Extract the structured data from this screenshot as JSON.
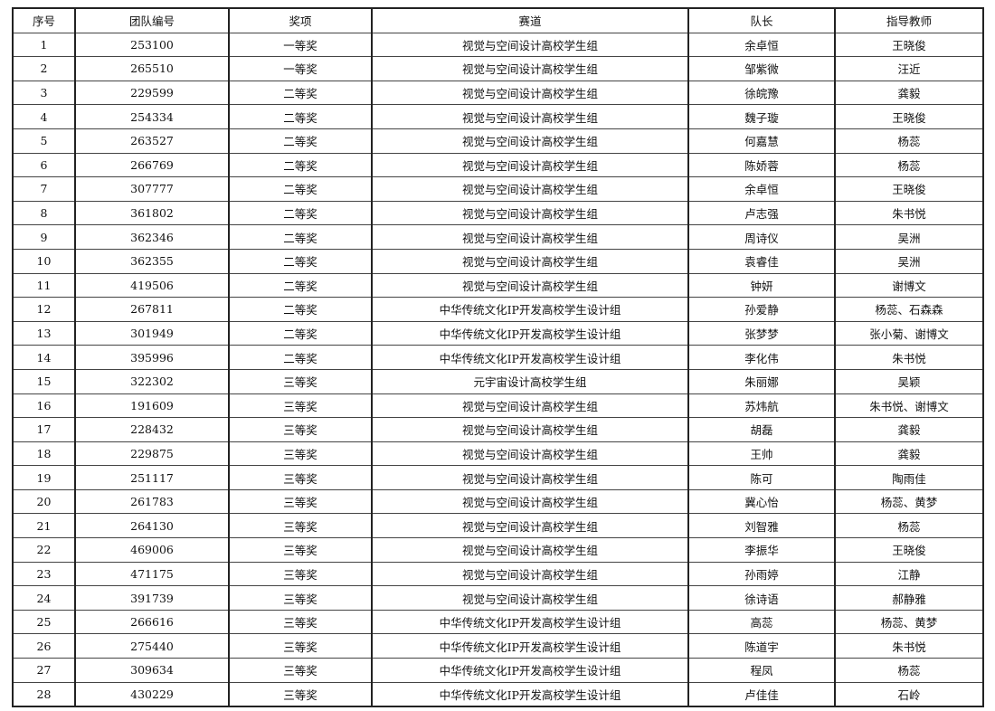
{
  "table": {
    "headers": [
      "序号",
      "团队编号",
      "奖项",
      "赛道",
      "队长",
      "指导教师"
    ],
    "rows": [
      [
        "1",
        "253100",
        "一等奖",
        "视觉与空间设计高校学生组",
        "余卓恒",
        "王晓俊"
      ],
      [
        "2",
        "265510",
        "一等奖",
        "视觉与空间设计高校学生组",
        "邹紫微",
        "汪近"
      ],
      [
        "3",
        "229599",
        "二等奖",
        "视觉与空间设计高校学生组",
        "徐皖豫",
        "龚毅"
      ],
      [
        "4",
        "254334",
        "二等奖",
        "视觉与空间设计高校学生组",
        "魏子璇",
        "王晓俊"
      ],
      [
        "5",
        "263527",
        "二等奖",
        "视觉与空间设计高校学生组",
        "何嘉慧",
        "杨蕊"
      ],
      [
        "6",
        "266769",
        "二等奖",
        "视觉与空间设计高校学生组",
        "陈娇蓉",
        "杨蕊"
      ],
      [
        "7",
        "307777",
        "二等奖",
        "视觉与空间设计高校学生组",
        "余卓恒",
        "王晓俊"
      ],
      [
        "8",
        "361802",
        "二等奖",
        "视觉与空间设计高校学生组",
        "卢志强",
        "朱书悦"
      ],
      [
        "9",
        "362346",
        "二等奖",
        "视觉与空间设计高校学生组",
        "周诗仪",
        "吴洲"
      ],
      [
        "10",
        "362355",
        "二等奖",
        "视觉与空间设计高校学生组",
        "袁睿佳",
        "吴洲"
      ],
      [
        "11",
        "419506",
        "二等奖",
        "视觉与空间设计高校学生组",
        "钟妍",
        "谢博文"
      ],
      [
        "12",
        "267811",
        "二等奖",
        "中华传统文化IP开发高校学生设计组",
        "孙爱静",
        "杨蕊、石森森"
      ],
      [
        "13",
        "301949",
        "二等奖",
        "中华传统文化IP开发高校学生设计组",
        "张梦梦",
        "张小菊、谢博文"
      ],
      [
        "14",
        "395996",
        "二等奖",
        "中华传统文化IP开发高校学生设计组",
        "李化伟",
        "朱书悦"
      ],
      [
        "15",
        "322302",
        "三等奖",
        "元宇宙设计高校学生组",
        "朱丽娜",
        "吴颖"
      ],
      [
        "16",
        "191609",
        "三等奖",
        "视觉与空间设计高校学生组",
        "苏炜航",
        "朱书悦、谢博文"
      ],
      [
        "17",
        "228432",
        "三等奖",
        "视觉与空间设计高校学生组",
        "胡磊",
        "龚毅"
      ],
      [
        "18",
        "229875",
        "三等奖",
        "视觉与空间设计高校学生组",
        "王帅",
        "龚毅"
      ],
      [
        "19",
        "251117",
        "三等奖",
        "视觉与空间设计高校学生组",
        "陈可",
        "陶雨佳"
      ],
      [
        "20",
        "261783",
        "三等奖",
        "视觉与空间设计高校学生组",
        "冀心怡",
        "杨蕊、黄梦"
      ],
      [
        "21",
        "264130",
        "三等奖",
        "视觉与空间设计高校学生组",
        "刘智雅",
        "杨蕊"
      ],
      [
        "22",
        "469006",
        "三等奖",
        "视觉与空间设计高校学生组",
        "李振华",
        "王晓俊"
      ],
      [
        "23",
        "471175",
        "三等奖",
        "视觉与空间设计高校学生组",
        "孙雨婷",
        "江静"
      ],
      [
        "24",
        "391739",
        "三等奖",
        "视觉与空间设计高校学生组",
        "徐诗语",
        "郝静雅"
      ],
      [
        "25",
        "266616",
        "三等奖",
        "中华传统文化IP开发高校学生设计组",
        "高蕊",
        "杨蕊、黄梦"
      ],
      [
        "26",
        "275440",
        "三等奖",
        "中华传统文化IP开发高校学生设计组",
        "陈道宇",
        "朱书悦"
      ],
      [
        "27",
        "309634",
        "三等奖",
        "中华传统文化IP开发高校学生设计组",
        "程凤",
        "杨蕊"
      ],
      [
        "28",
        "430229",
        "三等奖",
        "中华传统文化IP开发高校学生设计组",
        "卢佳佳",
        "石岭"
      ]
    ]
  }
}
